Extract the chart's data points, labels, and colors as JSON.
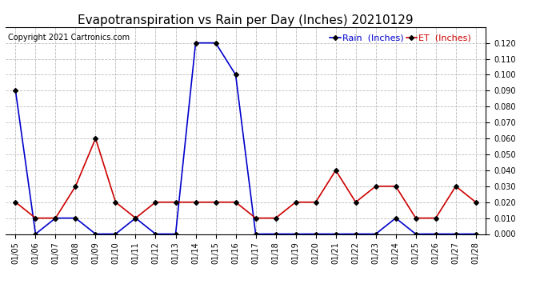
{
  "title": "Evapotranspiration vs Rain per Day (Inches) 20210129",
  "copyright": "Copyright 2021 Cartronics.com",
  "legend_rain": "Rain  (Inches)",
  "legend_et": "ET  (Inches)",
  "dates": [
    "01/05",
    "01/06",
    "01/07",
    "01/08",
    "01/09",
    "01/10",
    "01/11",
    "01/12",
    "01/13",
    "01/14",
    "01/15",
    "01/16",
    "01/17",
    "01/18",
    "01/19",
    "01/20",
    "01/21",
    "01/22",
    "01/23",
    "01/24",
    "01/25",
    "01/26",
    "01/27",
    "01/28"
  ],
  "rain": [
    0.09,
    0.0,
    0.01,
    0.01,
    0.0,
    0.0,
    0.01,
    0.0,
    0.0,
    0.12,
    0.12,
    0.1,
    0.0,
    0.0,
    0.0,
    0.0,
    0.0,
    0.0,
    0.0,
    0.01,
    0.0,
    0.0,
    0.0,
    0.0
  ],
  "et": [
    0.02,
    0.01,
    0.01,
    0.03,
    0.06,
    0.02,
    0.01,
    0.02,
    0.02,
    0.02,
    0.02,
    0.02,
    0.01,
    0.01,
    0.02,
    0.02,
    0.04,
    0.02,
    0.03,
    0.03,
    0.01,
    0.01,
    0.03,
    0.02
  ],
  "rain_color": "#0000cc",
  "et_color": "#cc0000",
  "marker_color": "#000000",
  "background_color": "#ffffff",
  "grid_color": "#bbbbbb",
  "ylim": [
    0.0,
    0.13
  ],
  "yticks": [
    0.0,
    0.01,
    0.02,
    0.03,
    0.04,
    0.05,
    0.06,
    0.07,
    0.08,
    0.09,
    0.1,
    0.11,
    0.12
  ],
  "title_fontsize": 11,
  "copyright_fontsize": 7,
  "legend_fontsize": 8,
  "tick_fontsize": 7,
  "line_width": 1.2,
  "marker_size": 3
}
